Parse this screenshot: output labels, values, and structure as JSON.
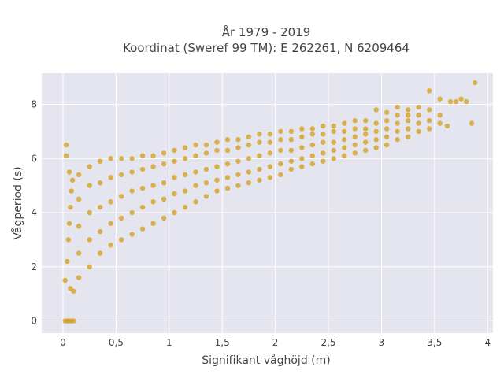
{
  "chart_data": {
    "type": "scatter",
    "title_line1": "År 1979 - 2019",
    "title_line2": "Koordinat (Sweref 99 TM): E 262261, N 6209464",
    "xlabel": "Signifikant våghöjd (m)",
    "ylabel": "Vågperiod (s)",
    "xlim": [
      -0.2,
      4.05
    ],
    "ylim": [
      -0.45,
      9.15
    ],
    "xticks": [
      0,
      0.5,
      1,
      1.5,
      2,
      2.5,
      3,
      3.5,
      4
    ],
    "xtick_labels": [
      "0",
      "0,5",
      "1",
      "1,5",
      "2",
      "2,5",
      "3",
      "3,5",
      "4"
    ],
    "yticks": [
      0,
      2,
      4,
      6,
      8
    ],
    "ytick_labels": [
      "0",
      "2",
      "4",
      "6",
      "8"
    ],
    "marker_color": "#D4A121",
    "plot_bgcolor": "#E5E5EF",
    "grid": true,
    "series": [
      {
        "points": [
          [
            0.02,
            0.0
          ],
          [
            0.04,
            0.0
          ],
          [
            0.06,
            0.0
          ],
          [
            0.08,
            0.0
          ],
          [
            0.1,
            0.0
          ],
          [
            0.02,
            1.5
          ],
          [
            0.04,
            2.2
          ],
          [
            0.05,
            3.0
          ],
          [
            0.06,
            3.6
          ],
          [
            0.07,
            4.2
          ],
          [
            0.08,
            4.8
          ],
          [
            0.09,
            5.2
          ],
          [
            0.06,
            5.5
          ],
          [
            0.03,
            6.5
          ],
          [
            0.03,
            6.1
          ],
          [
            0.07,
            1.2
          ],
          [
            0.1,
            1.1
          ],
          [
            0.15,
            1.6
          ],
          [
            0.15,
            2.5
          ],
          [
            0.15,
            3.5
          ],
          [
            0.15,
            4.5
          ],
          [
            0.15,
            5.4
          ],
          [
            0.25,
            2.0
          ],
          [
            0.25,
            3.0
          ],
          [
            0.25,
            4.0
          ],
          [
            0.25,
            5.0
          ],
          [
            0.25,
            5.7
          ],
          [
            0.35,
            2.5
          ],
          [
            0.35,
            3.3
          ],
          [
            0.35,
            4.2
          ],
          [
            0.35,
            5.1
          ],
          [
            0.35,
            5.9
          ],
          [
            0.45,
            2.8
          ],
          [
            0.45,
            3.6
          ],
          [
            0.45,
            4.4
          ],
          [
            0.45,
            5.3
          ],
          [
            0.45,
            6.0
          ],
          [
            0.55,
            3.0
          ],
          [
            0.55,
            3.8
          ],
          [
            0.55,
            4.6
          ],
          [
            0.55,
            5.4
          ],
          [
            0.55,
            6.0
          ],
          [
            0.65,
            3.2
          ],
          [
            0.65,
            4.0
          ],
          [
            0.65,
            4.8
          ],
          [
            0.65,
            5.5
          ],
          [
            0.65,
            6.0
          ],
          [
            0.75,
            3.4
          ],
          [
            0.75,
            4.2
          ],
          [
            0.75,
            4.9
          ],
          [
            0.75,
            5.6
          ],
          [
            0.75,
            6.1
          ],
          [
            0.85,
            3.6
          ],
          [
            0.85,
            4.4
          ],
          [
            0.85,
            5.0
          ],
          [
            0.85,
            5.7
          ],
          [
            0.85,
            6.1
          ],
          [
            0.95,
            3.8
          ],
          [
            0.95,
            4.5
          ],
          [
            0.95,
            5.1
          ],
          [
            0.95,
            5.8
          ],
          [
            0.95,
            6.2
          ],
          [
            1.05,
            4.0
          ],
          [
            1.05,
            4.7
          ],
          [
            1.05,
            5.3
          ],
          [
            1.05,
            5.9
          ],
          [
            1.05,
            6.3
          ],
          [
            1.15,
            4.2
          ],
          [
            1.15,
            4.8
          ],
          [
            1.15,
            5.4
          ],
          [
            1.15,
            6.0
          ],
          [
            1.15,
            6.4
          ],
          [
            1.25,
            4.4
          ],
          [
            1.25,
            5.0
          ],
          [
            1.25,
            5.5
          ],
          [
            1.25,
            6.1
          ],
          [
            1.25,
            6.5
          ],
          [
            1.35,
            4.6
          ],
          [
            1.35,
            5.1
          ],
          [
            1.35,
            5.6
          ],
          [
            1.35,
            6.2
          ],
          [
            1.35,
            6.5
          ],
          [
            1.45,
            4.8
          ],
          [
            1.45,
            5.2
          ],
          [
            1.45,
            5.7
          ],
          [
            1.45,
            6.3
          ],
          [
            1.45,
            6.6
          ],
          [
            1.55,
            4.9
          ],
          [
            1.55,
            5.3
          ],
          [
            1.55,
            5.8
          ],
          [
            1.55,
            6.3
          ],
          [
            1.55,
            6.7
          ],
          [
            1.65,
            5.0
          ],
          [
            1.65,
            5.4
          ],
          [
            1.65,
            5.9
          ],
          [
            1.65,
            6.4
          ],
          [
            1.65,
            6.7
          ],
          [
            1.75,
            5.1
          ],
          [
            1.75,
            5.5
          ],
          [
            1.75,
            6.0
          ],
          [
            1.75,
            6.5
          ],
          [
            1.75,
            6.8
          ],
          [
            1.85,
            5.2
          ],
          [
            1.85,
            5.6
          ],
          [
            1.85,
            6.1
          ],
          [
            1.85,
            6.6
          ],
          [
            1.85,
            6.9
          ],
          [
            1.95,
            5.3
          ],
          [
            1.95,
            5.7
          ],
          [
            1.95,
            6.2
          ],
          [
            1.95,
            6.6
          ],
          [
            1.95,
            6.9
          ],
          [
            2.05,
            5.4
          ],
          [
            2.05,
            5.8
          ],
          [
            2.05,
            6.3
          ],
          [
            2.05,
            6.7
          ],
          [
            2.05,
            7.0
          ],
          [
            2.15,
            5.6
          ],
          [
            2.15,
            5.9
          ],
          [
            2.15,
            6.3
          ],
          [
            2.15,
            6.7
          ],
          [
            2.15,
            7.0
          ],
          [
            2.25,
            5.7
          ],
          [
            2.25,
            6.0
          ],
          [
            2.25,
            6.4
          ],
          [
            2.25,
            6.8
          ],
          [
            2.25,
            7.1
          ],
          [
            2.35,
            5.8
          ],
          [
            2.35,
            6.1
          ],
          [
            2.35,
            6.5
          ],
          [
            2.35,
            6.9
          ],
          [
            2.35,
            7.1
          ],
          [
            2.45,
            5.9
          ],
          [
            2.45,
            6.2
          ],
          [
            2.45,
            6.6
          ],
          [
            2.45,
            6.9
          ],
          [
            2.45,
            7.2
          ],
          [
            2.55,
            6.0
          ],
          [
            2.55,
            6.3
          ],
          [
            2.55,
            6.6
          ],
          [
            2.55,
            7.0
          ],
          [
            2.55,
            7.2
          ],
          [
            2.65,
            6.1
          ],
          [
            2.65,
            6.4
          ],
          [
            2.65,
            6.7
          ],
          [
            2.65,
            7.0
          ],
          [
            2.65,
            7.3
          ],
          [
            2.75,
            6.2
          ],
          [
            2.75,
            6.5
          ],
          [
            2.75,
            6.8
          ],
          [
            2.75,
            7.1
          ],
          [
            2.75,
            7.4
          ],
          [
            2.85,
            6.3
          ],
          [
            2.85,
            6.6
          ],
          [
            2.85,
            6.9
          ],
          [
            2.85,
            7.1
          ],
          [
            2.85,
            7.4
          ],
          [
            2.95,
            6.4
          ],
          [
            2.95,
            6.7
          ],
          [
            2.95,
            7.0
          ],
          [
            2.95,
            7.3
          ],
          [
            2.95,
            7.8
          ],
          [
            3.05,
            6.5
          ],
          [
            3.05,
            6.8
          ],
          [
            3.05,
            7.1
          ],
          [
            3.05,
            7.4
          ],
          [
            3.05,
            7.7
          ],
          [
            3.15,
            6.7
          ],
          [
            3.15,
            7.0
          ],
          [
            3.15,
            7.3
          ],
          [
            3.15,
            7.6
          ],
          [
            3.15,
            7.9
          ],
          [
            3.25,
            6.8
          ],
          [
            3.25,
            7.1
          ],
          [
            3.25,
            7.4
          ],
          [
            3.25,
            7.8
          ],
          [
            3.25,
            7.6
          ],
          [
            3.35,
            7.0
          ],
          [
            3.35,
            7.3
          ],
          [
            3.35,
            7.6
          ],
          [
            3.35,
            7.9
          ],
          [
            3.45,
            7.1
          ],
          [
            3.45,
            7.4
          ],
          [
            3.45,
            7.8
          ],
          [
            3.45,
            8.5
          ],
          [
            3.55,
            7.3
          ],
          [
            3.55,
            7.6
          ],
          [
            3.55,
            8.2
          ],
          [
            3.62,
            7.2
          ],
          [
            3.65,
            8.1
          ],
          [
            3.7,
            8.1
          ],
          [
            3.75,
            8.2
          ],
          [
            3.85,
            7.3
          ],
          [
            3.8,
            8.1
          ],
          [
            3.88,
            8.8
          ]
        ]
      }
    ]
  }
}
